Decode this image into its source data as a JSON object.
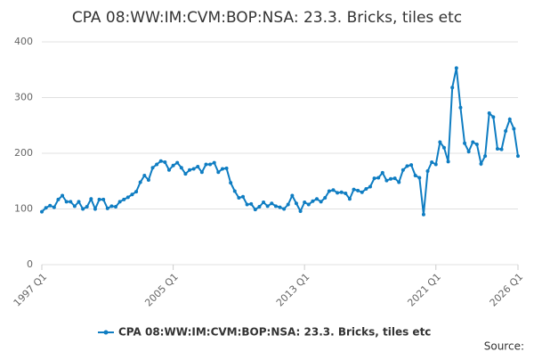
{
  "chart_data": {
    "type": "line",
    "title": "CPA 08:WW:IM:CVM:BOP:NSA: 23.3. Bricks, tiles etc",
    "source": "Source:",
    "categories": [
      "1997 Q1",
      null,
      null,
      null,
      null,
      null,
      null,
      null,
      null,
      null,
      null,
      null,
      null,
      null,
      null,
      null,
      null,
      null,
      null,
      null,
      null,
      null,
      null,
      null,
      null,
      null,
      null,
      null,
      null,
      null,
      null,
      null,
      "2005 Q1",
      null,
      null,
      null,
      null,
      null,
      null,
      null,
      null,
      null,
      null,
      null,
      null,
      null,
      null,
      null,
      null,
      null,
      null,
      null,
      null,
      null,
      null,
      null,
      null,
      null,
      null,
      null,
      null,
      null,
      null,
      null,
      "2013 Q1",
      null,
      null,
      null,
      null,
      null,
      null,
      null,
      null,
      null,
      null,
      null,
      null,
      null,
      null,
      null,
      null,
      null,
      null,
      null,
      null,
      null,
      null,
      null,
      null,
      null,
      null,
      null,
      null,
      null,
      null,
      null,
      "2021 Q1",
      null,
      null,
      null,
      null,
      null,
      null,
      null,
      null,
      null,
      null,
      null,
      null,
      null,
      null,
      null,
      null,
      null,
      null,
      null,
      "2026 Q1"
    ],
    "series": [
      {
        "name": "CPA 08:WW:IM:CVM:BOP:NSA: 23.3. Bricks, tiles etc",
        "color": "#0f7dc2",
        "values": [
          95,
          102,
          106,
          103,
          117,
          124,
          113,
          113,
          105,
          113,
          100,
          104,
          118,
          100,
          117,
          117,
          101,
          105,
          104,
          113,
          117,
          121,
          126,
          131,
          148,
          160,
          152,
          174,
          180,
          186,
          184,
          170,
          178,
          183,
          174,
          163,
          170,
          172,
          176,
          166,
          180,
          180,
          183,
          166,
          172,
          173,
          147,
          132,
          120,
          122,
          108,
          109,
          99,
          104,
          112,
          105,
          110,
          105,
          103,
          100,
          108,
          124,
          110,
          96,
          112,
          108,
          114,
          118,
          113,
          120,
          132,
          134,
          129,
          130,
          128,
          118,
          135,
          133,
          130,
          136,
          140,
          155,
          156,
          165,
          151,
          154,
          155,
          148,
          170,
          177,
          179,
          160,
          156,
          90,
          168,
          184,
          180,
          220,
          210,
          185,
          318,
          353,
          282,
          218,
          203,
          220,
          216,
          181,
          195,
          272,
          265,
          208,
          207,
          240,
          261,
          244,
          195
        ]
      }
    ],
    "ylim": [
      0,
      400
    ],
    "yticks": [
      0,
      100,
      200,
      300,
      400
    ],
    "grid": true
  }
}
